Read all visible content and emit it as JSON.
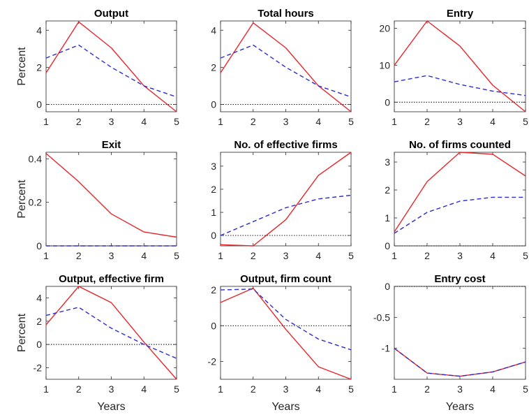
{
  "colors": {
    "series_solid": "#e8262b",
    "series_dashed": "#2b2bd6",
    "axis": "#262626",
    "zero_line": "#000000"
  },
  "chart_data": [
    {
      "type": "line",
      "title": "Output",
      "ylabel": "Percent",
      "xlabel": "",
      "x": [
        1,
        2,
        3,
        4,
        5
      ],
      "ylim": [
        -0.4,
        4.5
      ],
      "yticks": [
        0,
        2,
        4
      ],
      "xticks": [
        1,
        2,
        3,
        4,
        5
      ],
      "zero_line": true,
      "series": [
        {
          "style": "solid",
          "values": [
            1.7,
            4.45,
            3.05,
            1.0,
            -0.4
          ]
        },
        {
          "style": "dashed",
          "values": [
            2.5,
            3.2,
            2.0,
            1.0,
            0.4
          ]
        }
      ]
    },
    {
      "type": "line",
      "title": "Total hours",
      "ylabel": "",
      "xlabel": "",
      "x": [
        1,
        2,
        3,
        4,
        5
      ],
      "ylim": [
        -0.4,
        4.5
      ],
      "yticks": [
        0,
        2,
        4
      ],
      "xticks": [
        1,
        2,
        3,
        4,
        5
      ],
      "zero_line": true,
      "series": [
        {
          "style": "solid",
          "values": [
            1.7,
            4.4,
            3.05,
            1.0,
            -0.4
          ]
        },
        {
          "style": "dashed",
          "values": [
            2.5,
            3.2,
            2.0,
            1.0,
            0.4
          ]
        }
      ]
    },
    {
      "type": "line",
      "title": "Entry",
      "ylabel": "",
      "xlabel": "",
      "x": [
        1,
        2,
        3,
        4,
        5
      ],
      "ylim": [
        -2.6,
        22
      ],
      "yticks": [
        0,
        10,
        20
      ],
      "xticks": [
        1,
        2,
        3,
        4,
        5
      ],
      "zero_line": true,
      "series": [
        {
          "style": "solid",
          "values": [
            10.0,
            22.0,
            15.2,
            4.6,
            -2.6
          ]
        },
        {
          "style": "dashed",
          "values": [
            5.5,
            7.2,
            4.8,
            3.0,
            1.8
          ]
        }
      ]
    },
    {
      "type": "line",
      "title": "Exit",
      "ylabel": "Percent",
      "xlabel": "",
      "x": [
        1,
        2,
        3,
        4,
        5
      ],
      "ylim": [
        0,
        0.43
      ],
      "yticks": [
        0,
        0.2,
        0.4
      ],
      "xticks": [
        1,
        2,
        3,
        4,
        5
      ],
      "zero_line": true,
      "series": [
        {
          "style": "solid",
          "values": [
            0.425,
            0.295,
            0.147,
            0.064,
            0.04
          ]
        },
        {
          "style": "dashed",
          "values": [
            0,
            0,
            0,
            0,
            0
          ]
        }
      ]
    },
    {
      "type": "line",
      "title": "No. of effective firms",
      "ylabel": "",
      "xlabel": "",
      "x": [
        1,
        2,
        3,
        4,
        5
      ],
      "ylim": [
        -0.45,
        3.6
      ],
      "yticks": [
        0,
        1,
        2,
        3
      ],
      "xticks": [
        1,
        2,
        3,
        4,
        5
      ],
      "zero_line": true,
      "series": [
        {
          "style": "solid",
          "values": [
            -0.4,
            -0.45,
            0.68,
            2.6,
            3.6
          ]
        },
        {
          "style": "dashed",
          "values": [
            0.0,
            0.6,
            1.2,
            1.58,
            1.74
          ]
        }
      ]
    },
    {
      "type": "line",
      "title": "No. of firms counted",
      "ylabel": "",
      "xlabel": "",
      "x": [
        1,
        2,
        3,
        4,
        5
      ],
      "ylim": [
        0,
        3.35
      ],
      "yticks": [
        0,
        1,
        2,
        3
      ],
      "xticks": [
        1,
        2,
        3,
        4,
        5
      ],
      "zero_line": true,
      "series": [
        {
          "style": "solid",
          "values": [
            0.5,
            2.3,
            3.35,
            3.28,
            2.5
          ]
        },
        {
          "style": "dashed",
          "values": [
            0.45,
            1.2,
            1.6,
            1.74,
            1.74
          ]
        }
      ]
    },
    {
      "type": "line",
      "title": "Output, effective firm",
      "ylabel": "Percent",
      "xlabel": "Years",
      "x": [
        1,
        2,
        3,
        4,
        5
      ],
      "ylim": [
        -3.0,
        5.0
      ],
      "yticks": [
        -2,
        0,
        2,
        4
      ],
      "xticks": [
        1,
        2,
        3,
        4,
        5
      ],
      "zero_line": true,
      "series": [
        {
          "style": "solid",
          "values": [
            1.7,
            5.0,
            3.6,
            0.2,
            -3.0
          ]
        },
        {
          "style": "dashed",
          "values": [
            2.5,
            3.2,
            1.4,
            0.0,
            -1.2
          ]
        }
      ]
    },
    {
      "type": "line",
      "title": "Output, firm count",
      "ylabel": "",
      "xlabel": "Years",
      "x": [
        1,
        2,
        3,
        4,
        5
      ],
      "ylim": [
        -3.0,
        2.2
      ],
      "yticks": [
        -2,
        0,
        2
      ],
      "xticks": [
        1,
        2,
        3,
        4,
        5
      ],
      "zero_line": true,
      "series": [
        {
          "style": "solid",
          "values": [
            1.3,
            2.1,
            -0.2,
            -2.3,
            -3.0
          ]
        },
        {
          "style": "dashed",
          "values": [
            2.0,
            2.05,
            0.35,
            -0.75,
            -1.35
          ]
        }
      ]
    },
    {
      "type": "line",
      "title": "Entry cost",
      "ylabel": "",
      "xlabel": "Years",
      "x": [
        1,
        2,
        3,
        4,
        5
      ],
      "ylim": [
        -1.5,
        0
      ],
      "yticks": [
        -1,
        -0.5,
        0
      ],
      "xticks": [
        1,
        2,
        3,
        4,
        5
      ],
      "zero_line": true,
      "series": [
        {
          "style": "solid",
          "values": [
            -1.0,
            -1.4,
            -1.45,
            -1.38,
            -1.22
          ]
        },
        {
          "style": "dashed",
          "values": [
            -1.0,
            -1.4,
            -1.45,
            -1.38,
            -1.22
          ]
        }
      ]
    }
  ]
}
